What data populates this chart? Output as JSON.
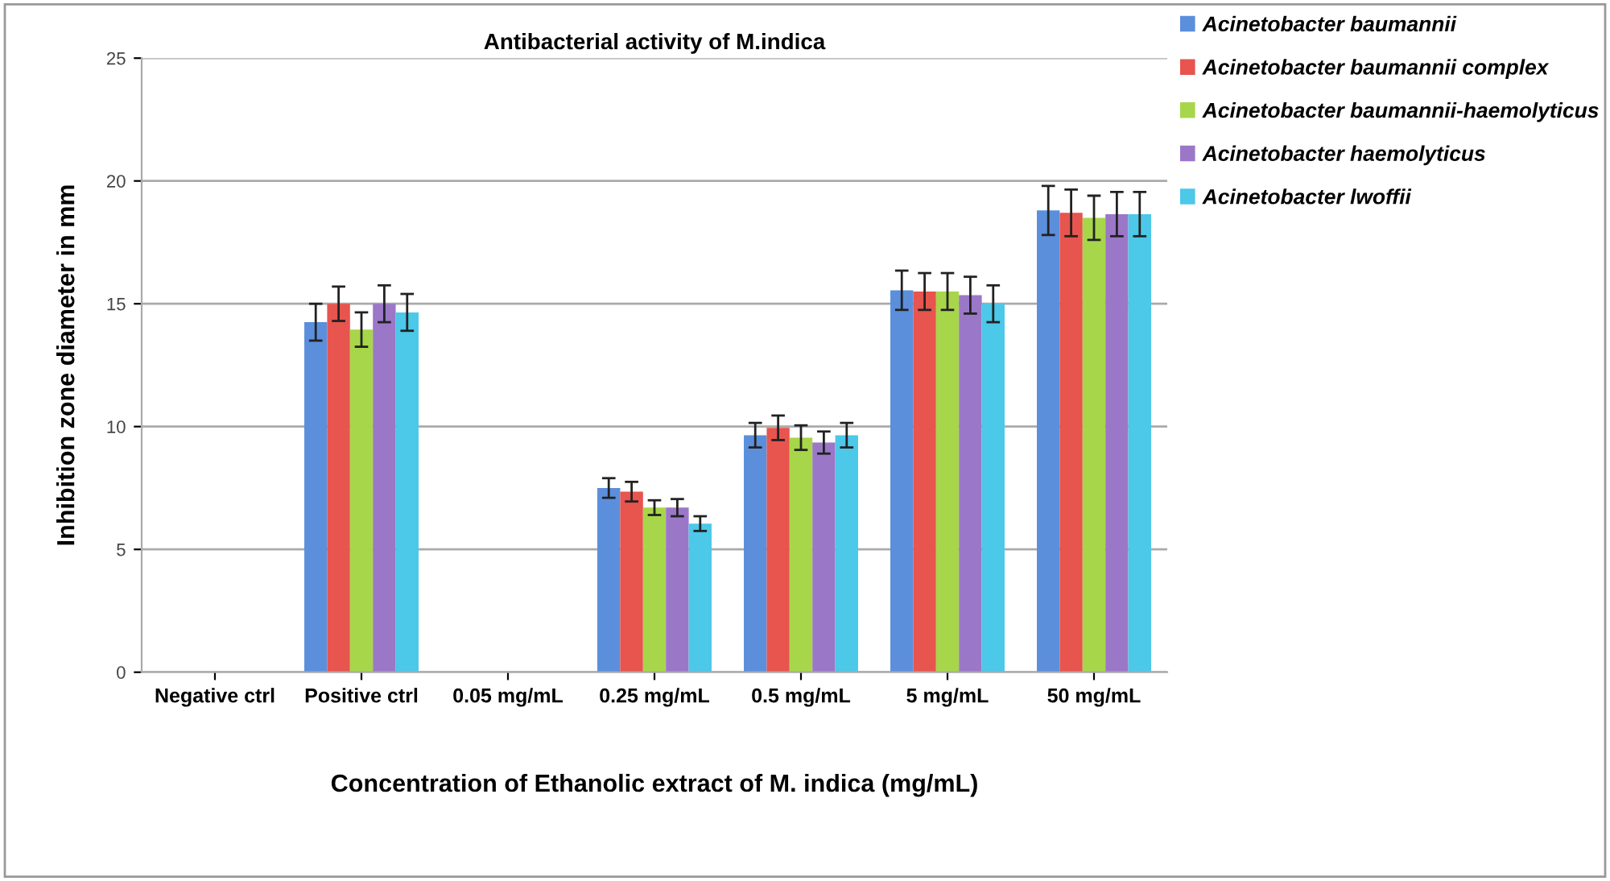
{
  "chart_data": {
    "type": "bar",
    "title": "Antibacterial activity of M.indica",
    "xlabel": "Concentration of Ethanolic extract of M. indica (mg/mL)",
    "ylabel": "Inhibition zone diameter in mm",
    "categories": [
      "Negative ctrl",
      "Positive ctrl",
      "0.05 mg/mL",
      "0.25 mg/mL",
      "0.5 mg/mL",
      "5 mg/mL",
      "50 mg/mL"
    ],
    "series": [
      {
        "name": "Acinetobacter baumannii",
        "color": "#5b8fdc",
        "values": [
          0,
          14.25,
          0,
          7.5,
          9.65,
          15.55,
          18.8
        ],
        "errors": [
          null,
          0.75,
          null,
          0.4,
          0.5,
          0.8,
          1.0
        ]
      },
      {
        "name": "Acinetobacter baumannii complex",
        "color": "#e8544e",
        "values": [
          0,
          15.0,
          0,
          7.35,
          9.95,
          15.5,
          18.7
        ],
        "errors": [
          null,
          0.7,
          null,
          0.4,
          0.5,
          0.75,
          0.95
        ]
      },
      {
        "name": "Acinetobacter baumannii-haemolyticus",
        "color": "#a8d64a",
        "values": [
          0,
          13.95,
          0,
          6.7,
          9.55,
          15.5,
          18.5
        ],
        "errors": [
          null,
          0.7,
          null,
          0.3,
          0.5,
          0.75,
          0.9
        ]
      },
      {
        "name": "Acinetobacter haemolyticus",
        "color": "#9b77c8",
        "values": [
          0,
          15.0,
          0,
          6.7,
          9.35,
          15.35,
          18.65
        ],
        "errors": [
          null,
          0.75,
          null,
          0.35,
          0.45,
          0.75,
          0.9
        ]
      },
      {
        "name": "Acinetobacter lwoffii",
        "color": "#4cc8e8",
        "values": [
          0,
          14.65,
          0,
          6.05,
          9.65,
          15.0,
          18.65
        ],
        "errors": [
          null,
          0.75,
          null,
          0.3,
          0.5,
          0.75,
          0.9
        ]
      }
    ],
    "ylim": [
      0,
      25
    ],
    "yticks": [
      0,
      5,
      10,
      15,
      20,
      25
    ],
    "grid": "y",
    "legend": "top right"
  }
}
